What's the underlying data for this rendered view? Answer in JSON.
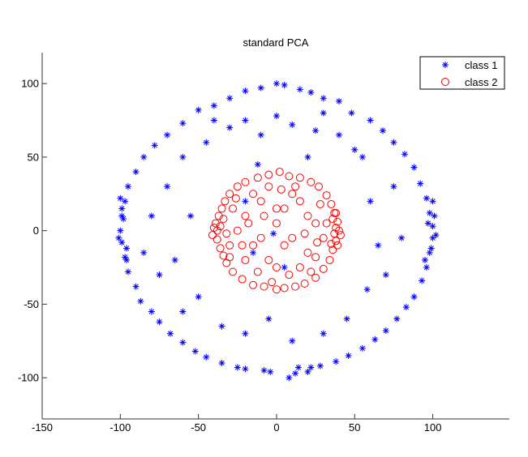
{
  "chart_data": {
    "type": "scatter",
    "title": "standard PCA",
    "xlabel": "",
    "ylabel": "",
    "xlim": [
      -150,
      149
    ],
    "ylim": [
      -128,
      121
    ],
    "xticks": [
      -150,
      -100,
      -50,
      0,
      50,
      100
    ],
    "yticks": [
      -100,
      -50,
      0,
      50,
      100
    ],
    "grid": false,
    "legend_position": "top-right",
    "colors": {
      "class1": "#0000ff",
      "class2": "#ff0000",
      "axis": "#333333"
    },
    "series": [
      {
        "name": "class 1",
        "marker": "asterisk",
        "points": [
          [
            0,
            100
          ],
          [
            5,
            99
          ],
          [
            -10,
            97
          ],
          [
            15,
            96
          ],
          [
            22,
            94
          ],
          [
            -20,
            95
          ],
          [
            -30,
            90
          ],
          [
            30,
            90
          ],
          [
            40,
            88
          ],
          [
            -40,
            85
          ],
          [
            48,
            80
          ],
          [
            -50,
            82
          ],
          [
            60,
            75
          ],
          [
            -60,
            73
          ],
          [
            68,
            68
          ],
          [
            -70,
            65
          ],
          [
            75,
            60
          ],
          [
            -78,
            58
          ],
          [
            82,
            52
          ],
          [
            -85,
            50
          ],
          [
            88,
            43
          ],
          [
            -90,
            40
          ],
          [
            92,
            32
          ],
          [
            -95,
            30
          ],
          [
            96,
            22
          ],
          [
            -97,
            20
          ],
          [
            98,
            12
          ],
          [
            -99,
            10
          ],
          [
            100,
            3
          ],
          [
            -100,
            0
          ],
          [
            100,
            -5
          ],
          [
            -99,
            -8
          ],
          [
            98,
            -15
          ],
          [
            -97,
            -18
          ],
          [
            96,
            -25
          ],
          [
            -95,
            -28
          ],
          [
            93,
            -34
          ],
          [
            -90,
            -38
          ],
          [
            88,
            -45
          ],
          [
            -87,
            -48
          ],
          [
            83,
            -52
          ],
          [
            -80,
            -55
          ],
          [
            77,
            -60
          ],
          [
            -75,
            -62
          ],
          [
            70,
            -68
          ],
          [
            -68,
            -70
          ],
          [
            63,
            -74
          ],
          [
            -60,
            -76
          ],
          [
            55,
            -80
          ],
          [
            -52,
            -82
          ],
          [
            46,
            -85
          ],
          [
            -45,
            -86
          ],
          [
            38,
            -89
          ],
          [
            -35,
            -90
          ],
          [
            28,
            -92
          ],
          [
            -25,
            -93
          ],
          [
            20,
            -96
          ],
          [
            -20,
            -94
          ],
          [
            12,
            -97
          ],
          [
            -8,
            -95
          ],
          [
            8,
            -100
          ],
          [
            -4,
            -96
          ],
          [
            14,
            -93
          ],
          [
            22,
            -93
          ],
          [
            101,
            10
          ],
          [
            99,
            -12
          ],
          [
            102,
            -3
          ],
          [
            97,
            5
          ],
          [
            -98,
            8
          ],
          [
            -101,
            -5
          ],
          [
            -96,
            -12
          ],
          [
            -99,
            15
          ],
          [
            95,
            -20
          ],
          [
            100,
            20
          ],
          [
            -100,
            22
          ],
          [
            -96,
            -20
          ],
          [
            -70,
            30
          ],
          [
            -65,
            -20
          ],
          [
            -60,
            50
          ],
          [
            -55,
            10
          ],
          [
            -50,
            -45
          ],
          [
            -45,
            60
          ],
          [
            -30,
            70
          ],
          [
            -20,
            75
          ],
          [
            -10,
            65
          ],
          [
            10,
            72
          ],
          [
            25,
            68
          ],
          [
            40,
            65
          ],
          [
            55,
            50
          ],
          [
            60,
            20
          ],
          [
            65,
            -10
          ],
          [
            58,
            -40
          ],
          [
            45,
            -60
          ],
          [
            30,
            -70
          ],
          [
            10,
            -75
          ],
          [
            -5,
            -60
          ],
          [
            -20,
            -70
          ],
          [
            -35,
            -65
          ],
          [
            -75,
            -30
          ],
          [
            -80,
            10
          ],
          [
            75,
            30
          ],
          [
            70,
            -30
          ],
          [
            -60,
            -55
          ],
          [
            50,
            55
          ],
          [
            -15,
            -15
          ],
          [
            -2,
            -2
          ],
          [
            5,
            -25
          ],
          [
            -20,
            20
          ],
          [
            80,
            -5
          ],
          [
            -85,
            -15
          ],
          [
            -12,
            45
          ],
          [
            20,
            50
          ],
          [
            0,
            78
          ],
          [
            30,
            80
          ],
          [
            -40,
            75
          ]
        ]
      },
      {
        "name": "class 2",
        "marker": "circle",
        "points": [
          [
            -38,
            0
          ],
          [
            -39,
            5
          ],
          [
            -38,
            -6
          ],
          [
            -37,
            10
          ],
          [
            -36,
            -12
          ],
          [
            -35,
            15
          ],
          [
            -34,
            -17
          ],
          [
            -40,
            2
          ],
          [
            -41,
            -3
          ],
          [
            -36,
            3
          ],
          [
            -33,
            20
          ],
          [
            -32,
            -22
          ],
          [
            -30,
            25
          ],
          [
            -28,
            -28
          ],
          [
            -25,
            30
          ],
          [
            -22,
            -33
          ],
          [
            -20,
            33
          ],
          [
            -15,
            -37
          ],
          [
            -12,
            36
          ],
          [
            -8,
            -38
          ],
          [
            -5,
            38
          ],
          [
            0,
            -40
          ],
          [
            2,
            40
          ],
          [
            5,
            -39
          ],
          [
            8,
            37
          ],
          [
            12,
            -38
          ],
          [
            15,
            36
          ],
          [
            18,
            -36
          ],
          [
            22,
            33
          ],
          [
            25,
            -32
          ],
          [
            27,
            30
          ],
          [
            30,
            -26
          ],
          [
            32,
            24
          ],
          [
            34,
            -20
          ],
          [
            35,
            18
          ],
          [
            36,
            -13
          ],
          [
            37,
            12
          ],
          [
            38,
            -7
          ],
          [
            39,
            6
          ],
          [
            40,
            0
          ],
          [
            41,
            -3
          ],
          [
            38,
            2
          ],
          [
            37,
            -2
          ],
          [
            36,
            8
          ],
          [
            35,
            -9
          ],
          [
            39,
            -10
          ],
          [
            38,
            12
          ],
          [
            -25,
            0
          ],
          [
            -20,
            10
          ],
          [
            -15,
            -10
          ],
          [
            -10,
            20
          ],
          [
            -5,
            -20
          ],
          [
            0,
            5
          ],
          [
            5,
            15
          ],
          [
            10,
            -5
          ],
          [
            15,
            20
          ],
          [
            20,
            -15
          ],
          [
            25,
            5
          ],
          [
            -20,
            -20
          ],
          [
            -10,
            -5
          ],
          [
            0,
            -25
          ],
          [
            10,
            25
          ],
          [
            20,
            10
          ],
          [
            -28,
            15
          ],
          [
            -15,
            25
          ],
          [
            5,
            -10
          ],
          [
            15,
            -25
          ],
          [
            25,
            -18
          ],
          [
            28,
            18
          ],
          [
            -5,
            30
          ],
          [
            0,
            15
          ],
          [
            -30,
            -10
          ],
          [
            30,
            -5
          ],
          [
            -12,
            -28
          ],
          [
            12,
            30
          ],
          [
            -22,
            -10
          ],
          [
            18,
            -2
          ],
          [
            -8,
            10
          ],
          [
            8,
            -30
          ],
          [
            -3,
            -35
          ],
          [
            3,
            28
          ],
          [
            -18,
            5
          ],
          [
            22,
            -28
          ],
          [
            -26,
            22
          ],
          [
            26,
            -8
          ],
          [
            -32,
            -2
          ],
          [
            32,
            5
          ],
          [
            -30,
            -18
          ],
          [
            -34,
            8
          ]
        ]
      }
    ]
  }
}
